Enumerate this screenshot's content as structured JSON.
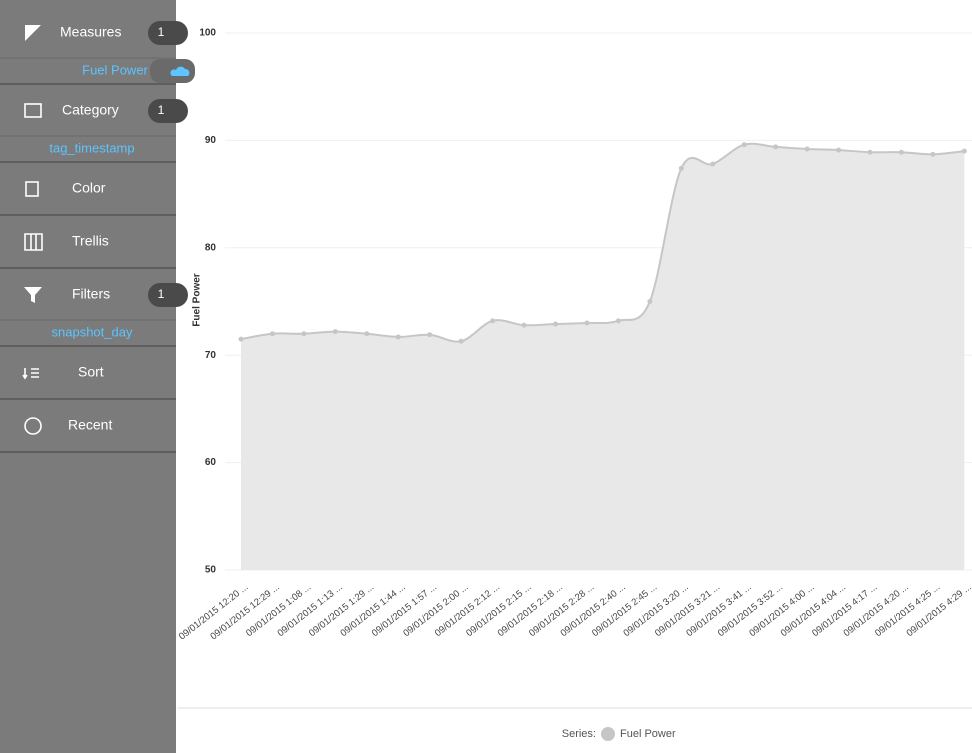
{
  "sidebar": {
    "items": [
      {
        "label": "Measures",
        "badge": 1,
        "sub": "Fuel Power"
      },
      {
        "label": "Category",
        "badge": 1,
        "sub": "tag_timestamp"
      },
      {
        "label": "Color"
      },
      {
        "label": "Trellis"
      },
      {
        "label": "Filters",
        "badge": 1,
        "sub": "snapshot_day"
      },
      {
        "label": "Sort"
      },
      {
        "label": "Recent"
      }
    ]
  },
  "chart_data": {
    "type": "area",
    "y_label": "Fuel Power",
    "categories": [
      "09/01/2015 12:20 ...",
      "09/01/2015 12:29 ...",
      "09/01/2015 1:08 ...",
      "09/01/2015 1:13 ...",
      "09/01/2015 1:29 ...",
      "09/01/2015 1:44 ...",
      "09/01/2015 1:57 ...",
      "09/01/2015 2:00 ...",
      "09/01/2015 2:12 ...",
      "09/01/2015 2:15 ...",
      "09/01/2015 2:18 ...",
      "09/01/2015 2:28 ...",
      "09/01/2015 2:40 ...",
      "09/01/2015 2:45 ...",
      "09/01/2015 3:20 ...",
      "09/01/2015 3:21 ...",
      "09/01/2015 3:41 ...",
      "09/01/2015 3:52 ...",
      "09/01/2015 4:00 ...",
      "09/01/2015 4:04 ...",
      "09/01/2015 4:17 ...",
      "09/01/2015 4:20 ...",
      "09/01/2015 4:25 ...",
      "09/01/2015 4:29 ..."
    ],
    "series": [
      {
        "name": "Fuel Power",
        "color": "#c6c6c6",
        "values": [
          71.5,
          72.0,
          72.0,
          72.2,
          72.0,
          71.7,
          71.9,
          71.3,
          73.2,
          72.8,
          72.9,
          73.0,
          73.2,
          75.0,
          87.4,
          87.8,
          89.6,
          89.4,
          89.2,
          89.1,
          88.9,
          88.9,
          88.7,
          89.0
        ]
      }
    ],
    "ylim": [
      50,
      100
    ],
    "yticks": [
      50,
      60,
      70,
      80,
      90,
      100
    ],
    "grid": true,
    "legend_title": "Series:"
  }
}
